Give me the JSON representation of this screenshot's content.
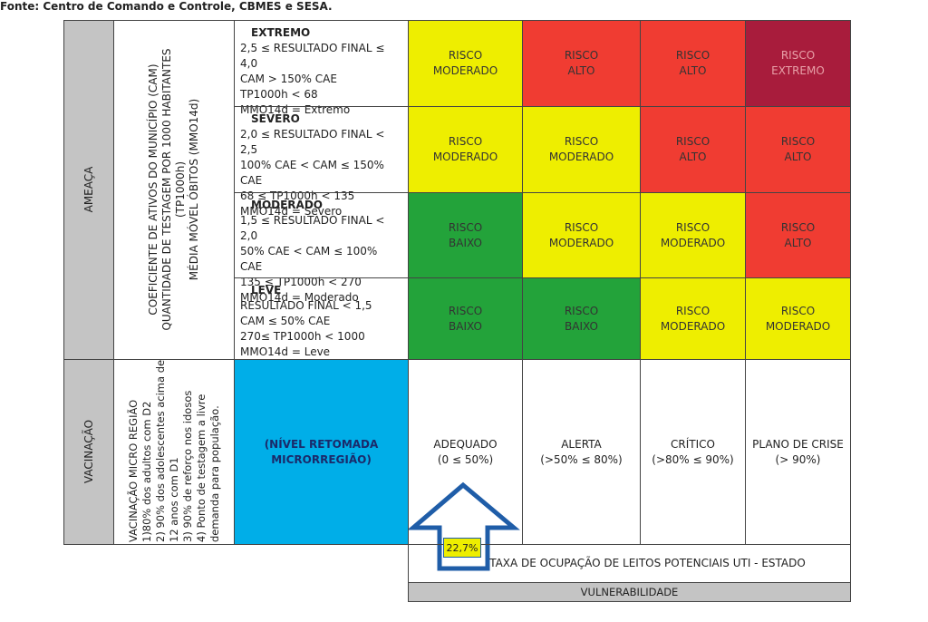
{
  "threat": {
    "label": "AMEAÇA",
    "indicators": [
      "COEFICIENTE DE ATIVOS DO MUNICÍPIO (CAM)",
      "QUANTIDADE DE TESTAGEM POR 1000 HABITANTES (TP1000h)",
      "MÉDIA MÓVEL ÓBITOS (MMO14d)"
    ],
    "levels": [
      {
        "title": "EXTREMO",
        "lines": [
          "2,5 ≤ RESULTADO FINAL  ≤ 4,0",
          "CAM > 150% CAE",
          "TP1000h < 68",
          "MMO14d = Extremo"
        ],
        "cells": [
          {
            "lines": [
              "RISCO",
              "MODERADO"
            ],
            "color": "#eeee00"
          },
          {
            "lines": [
              "RISCO",
              "ALTO"
            ],
            "color": "#f03c32"
          },
          {
            "lines": [
              "RISCO",
              "ALTO"
            ],
            "color": "#f03c32"
          },
          {
            "lines": [
              "RISCO",
              "EXTREMO"
            ],
            "color": "#a81c3c"
          }
        ]
      },
      {
        "title": "SEVERO",
        "lines": [
          "2,0 ≤ RESULTADO FINAL  < 2,5",
          "100% CAE < CAM ≤ 150% CAE",
          "68 ≤ TP1000h < 135",
          "MMO14d = Severo"
        ],
        "cells": [
          {
            "lines": [
              "RISCO",
              "MODERADO"
            ],
            "color": "#eeee00"
          },
          {
            "lines": [
              "RISCO",
              "MODERADO"
            ],
            "color": "#eeee00"
          },
          {
            "lines": [
              "RISCO",
              "ALTO"
            ],
            "color": "#f03c32"
          },
          {
            "lines": [
              "RISCO",
              "ALTO"
            ],
            "color": "#f03c32"
          }
        ]
      },
      {
        "title": "MODERADO",
        "lines": [
          "1,5 ≤ RESULTADO FINAL < 2,0",
          "50% CAE < CAM ≤ 100% CAE",
          "135 ≤ TP1000h < 270",
          "MMO14d = Moderado"
        ],
        "cells": [
          {
            "lines": [
              "RISCO",
              "BAIXO"
            ],
            "color": "#23a33a"
          },
          {
            "lines": [
              "RISCO",
              "MODERADO"
            ],
            "color": "#eeee00"
          },
          {
            "lines": [
              "RISCO",
              "MODERADO"
            ],
            "color": "#eeee00"
          },
          {
            "lines": [
              "RISCO",
              "ALTO"
            ],
            "color": "#f03c32"
          }
        ]
      },
      {
        "title": "LEVE",
        "lines": [
          "RESULTADO FINAL  < 1,5",
          "CAM ≤ 50% CAE",
          "270≤ TP1000h < 1000",
          "MMO14d = Leve"
        ],
        "cells": [
          {
            "lines": [
              "RISCO",
              "BAIXO"
            ],
            "color": "#23a33a"
          },
          {
            "lines": [
              "RISCO",
              "BAIXO"
            ],
            "color": "#23a33a"
          },
          {
            "lines": [
              "RISCO",
              "MODERADO"
            ],
            "color": "#eeee00"
          },
          {
            "lines": [
              "RISCO",
              "MODERADO"
            ],
            "color": "#eeee00"
          }
        ]
      }
    ]
  },
  "vaccination": {
    "label": "VACINAÇÃO",
    "criteria": [
      "VACINAÇÃO MICRO REGIÃO",
      "1)80% dos adultos com D2",
      "2) 90% dos adolescentes acima de",
      "12 anos com D1",
      "3) 90% de reforço nos idosos",
      "4) Ponto de testagem a livre",
      "demanda para população."
    ],
    "level": [
      "(NÍVEL RETOMADA",
      "MICRORREGIÃO)"
    ]
  },
  "occupancy": [
    {
      "name": "ADEQUADO",
      "range": "(0 ≤ 50%)"
    },
    {
      "name": "ALERTA",
      "range": "(>50% ≤ 80%)"
    },
    {
      "name": "CRÍTICO",
      "range": "(>80% ≤ 90%)"
    },
    {
      "name": "PLANO DE CRISE",
      "range": "(> 90%)"
    }
  ],
  "current": "22,7%",
  "axis": "TAXA DE OCUPAÇÃO DE LEITOS POTENCIAIS UTI - ESTADO",
  "vulnerability": "VULNERABILIDADE",
  "source": "Fonte: Centro de Comando e Controle, CBMES e SESA."
}
